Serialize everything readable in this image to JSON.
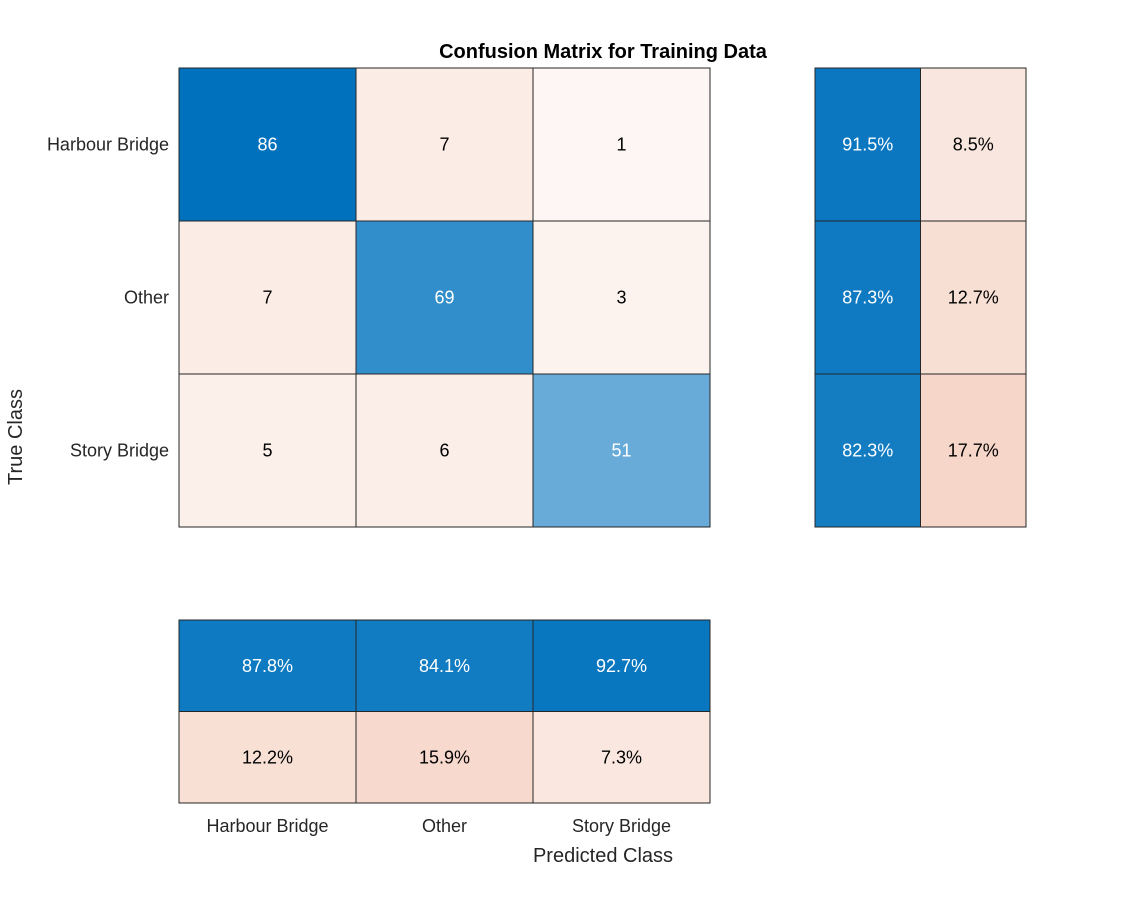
{
  "chart_data": {
    "type": "heatmap",
    "title": "Confusion Matrix for Training Data",
    "xlabel": "Predicted Class",
    "ylabel": "True Class",
    "classes": [
      "Harbour Bridge",
      "Other",
      "Story Bridge"
    ],
    "matrix": [
      [
        86,
        7,
        1
      ],
      [
        7,
        69,
        3
      ],
      [
        5,
        6,
        51
      ]
    ],
    "row_summary": [
      [
        "91.5%",
        "8.5%"
      ],
      [
        "87.3%",
        "12.7%"
      ],
      [
        "82.3%",
        "17.7%"
      ]
    ],
    "column_summary": [
      [
        "87.8%",
        "84.1%",
        "92.7%"
      ],
      [
        "12.2%",
        "15.9%",
        "7.3%"
      ]
    ],
    "colors": {
      "correct_dark": "#0072bd",
      "incorrect_dark": "#d95319",
      "text_light": "#ffffff",
      "text_dark": "#000000"
    }
  }
}
